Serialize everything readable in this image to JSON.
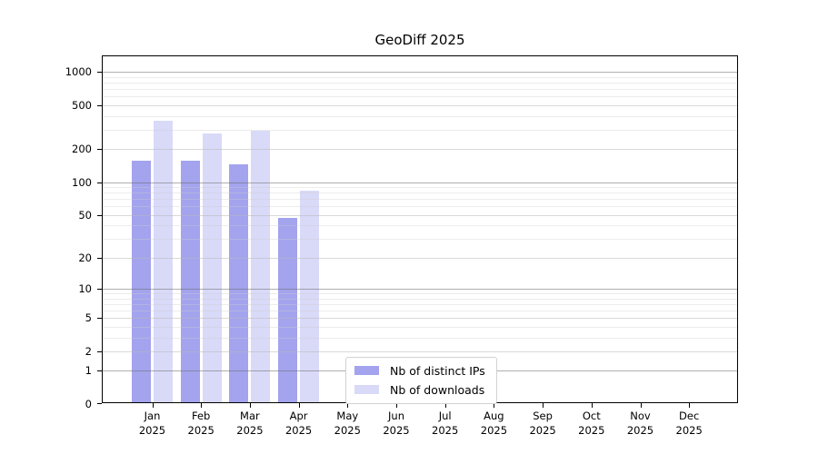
{
  "chart_data": {
    "type": "bar",
    "title": "GeoDiff 2025",
    "xlabel": "",
    "ylabel": "",
    "yscale": "log(value+1)",
    "yticks": [
      0,
      1,
      2,
      5,
      10,
      20,
      50,
      100,
      200,
      500,
      1000
    ],
    "ylim": [
      0,
      1390
    ],
    "grid": "horizontal",
    "legend_position": "bottom-center-inside",
    "categories": [
      "Jan",
      "Feb",
      "Mar",
      "Apr",
      "May",
      "Jun",
      "Jul",
      "Aug",
      "Sep",
      "Oct",
      "Nov",
      "Dec"
    ],
    "category_year": "2025",
    "series": [
      {
        "name": "Nb of distinct IPs",
        "color": "#a3a3ee",
        "values": [
          150,
          150,
          140,
          45,
          null,
          null,
          null,
          null,
          null,
          null,
          null,
          null
        ]
      },
      {
        "name": "Nb of downloads",
        "color": "#d9d9f8",
        "values": [
          350,
          265,
          285,
          80,
          null,
          null,
          null,
          null,
          null,
          null,
          null,
          null
        ]
      }
    ]
  }
}
